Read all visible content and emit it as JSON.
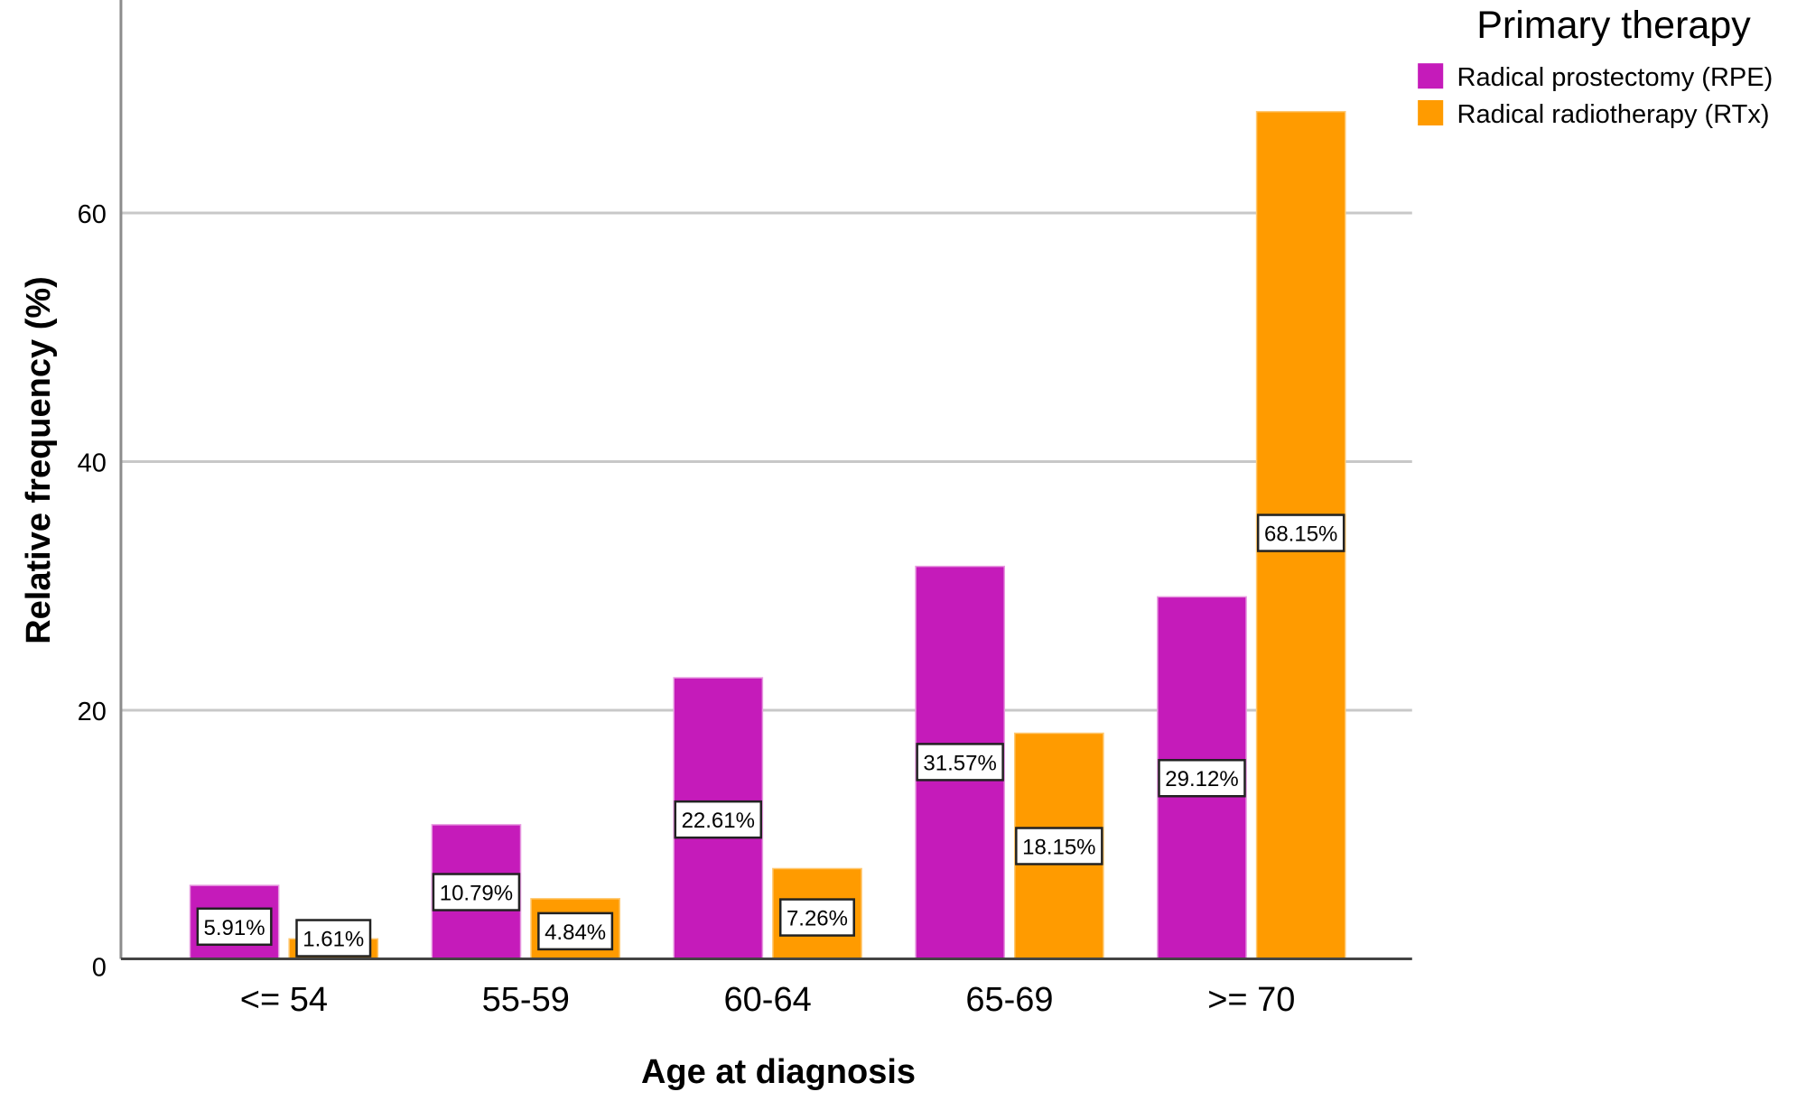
{
  "chart_data": {
    "type": "bar",
    "title": "",
    "xlabel": "Age at diagnosis",
    "ylabel": "Relative frequency (%)",
    "ylim": [
      0,
      77
    ],
    "yticks": [
      0,
      20,
      40,
      60
    ],
    "grid": true,
    "categories": [
      "<= 54",
      "55-59",
      "60-64",
      "65-69",
      ">= 70"
    ],
    "legend": {
      "title": "Primary therapy",
      "placement": "top-right"
    },
    "series": [
      {
        "name": "Radical prostectomy (RPE)",
        "color": "#c51bba",
        "values": [
          5.91,
          10.79,
          22.61,
          31.57,
          29.12
        ],
        "labels": [
          "5.91%",
          "10.79%",
          "22.61%",
          "31.57%",
          "29.12%"
        ]
      },
      {
        "name": "Radical radiotherapy (RTx)",
        "color": "#ff9b00",
        "values": [
          1.61,
          4.84,
          7.26,
          18.15,
          68.15
        ],
        "labels": [
          "1.61%",
          "4.84%",
          "7.26%",
          "18.15%",
          "68.15%"
        ]
      }
    ]
  }
}
